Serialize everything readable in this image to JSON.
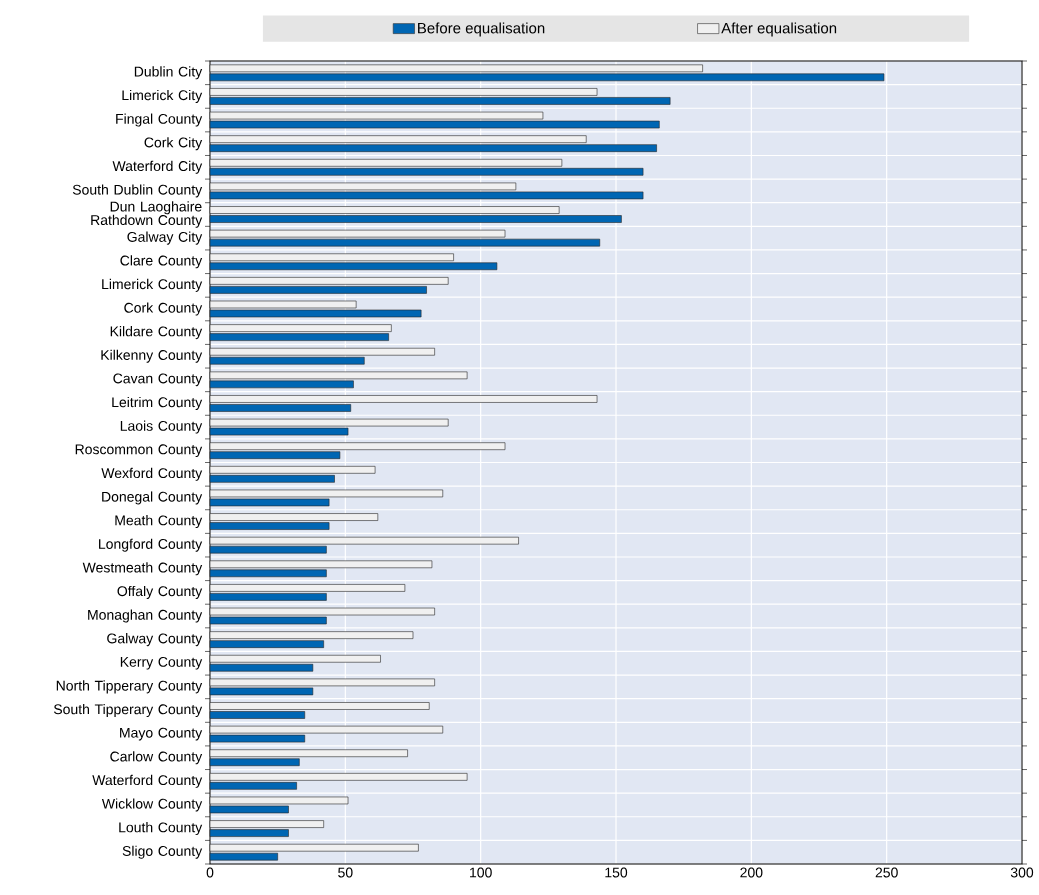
{
  "chart_data": {
    "type": "bar",
    "orientation": "horizontal",
    "categories": [
      "Dublin City",
      "Limerick City",
      "Fingal County",
      "Cork City",
      "Waterford City",
      "South Dublin County",
      "Dun Laoghaire Rathdown County",
      "Galway City",
      "Clare County",
      "Limerick County",
      "Cork County",
      "Kildare County",
      "Kilkenny County",
      "Cavan County",
      "Leitrim County",
      "Laois County",
      "Roscommon County",
      "Wexford County",
      "Donegal County",
      "Meath County",
      "Longford County",
      "Westmeath County",
      "Offaly County",
      "Monaghan County",
      "Galway County",
      "Kerry County",
      "North Tipperary County",
      "South Tipperary County",
      "Mayo County",
      "Carlow County",
      "Waterford County",
      "Wicklow County",
      "Louth County",
      "Sligo County"
    ],
    "series": [
      {
        "name": "Before equalisation",
        "color": "#0066b3",
        "values": [
          249,
          170,
          166,
          165,
          160,
          160,
          152,
          144,
          106,
          80,
          78,
          66,
          57,
          53,
          52,
          51,
          48,
          46,
          44,
          44,
          43,
          43,
          43,
          43,
          42,
          38,
          38,
          35,
          35,
          33,
          32,
          29,
          29,
          25
        ]
      },
      {
        "name": "After equalisation",
        "color": "#f0f0f0",
        "values": [
          182,
          143,
          123,
          139,
          130,
          113,
          129,
          109,
          90,
          88,
          54,
          67,
          83,
          95,
          143,
          88,
          109,
          61,
          86,
          62,
          114,
          82,
          72,
          83,
          75,
          63,
          83,
          81,
          86,
          73,
          95,
          51,
          42,
          77
        ]
      }
    ],
    "xlim": [
      0,
      300
    ],
    "xticks": [
      0,
      50,
      100,
      150,
      200,
      250,
      300
    ],
    "grid": true,
    "legend": "top"
  }
}
